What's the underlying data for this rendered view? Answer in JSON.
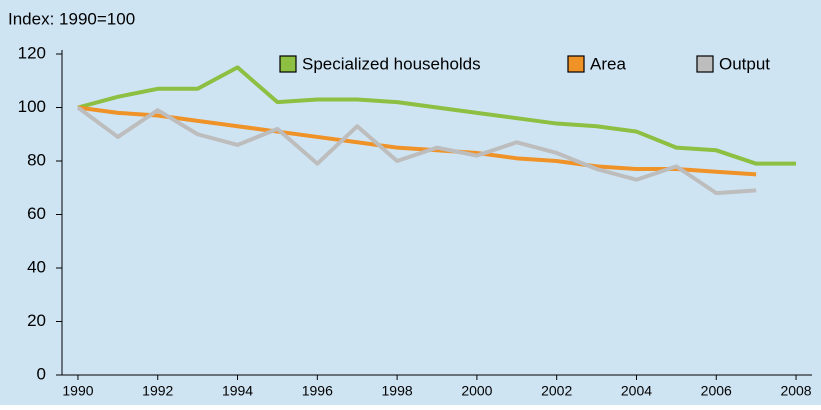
{
  "chart_data": {
    "type": "line",
    "y_label": "Index: 1990=100",
    "x": [
      1990,
      1991,
      1992,
      1993,
      1994,
      1995,
      1996,
      1997,
      1998,
      1999,
      2000,
      2001,
      2002,
      2003,
      2004,
      2005,
      2006,
      2007,
      2008
    ],
    "series": [
      {
        "name": "Specialized households",
        "color": "#8dbf42",
        "values": [
          100,
          104,
          107,
          107,
          115,
          102,
          103,
          103,
          102,
          100,
          98,
          96,
          94,
          93,
          91,
          85,
          84,
          79,
          79
        ]
      },
      {
        "name": "Area",
        "color": "#ef9228",
        "values": [
          100,
          98,
          97,
          95,
          93,
          91,
          89,
          87,
          85,
          84,
          83,
          81,
          80,
          78,
          77,
          77,
          76,
          75,
          null
        ]
      },
      {
        "name": "Output",
        "color": "#bdbdbd",
        "values": [
          100,
          89,
          99,
          90,
          86,
          92,
          79,
          93,
          80,
          85,
          82,
          87,
          83,
          77,
          73,
          78,
          68,
          69,
          null
        ]
      }
    ],
    "xlim": [
      1989.6,
      2008.4
    ],
    "xticks": [
      1990,
      1992,
      1994,
      1996,
      1998,
      2000,
      2002,
      2004,
      2006,
      2008
    ],
    "ylim": [
      0,
      120
    ],
    "yticks": [
      0,
      20,
      40,
      60,
      80,
      100,
      120
    ],
    "background": "#cfe4f3"
  }
}
